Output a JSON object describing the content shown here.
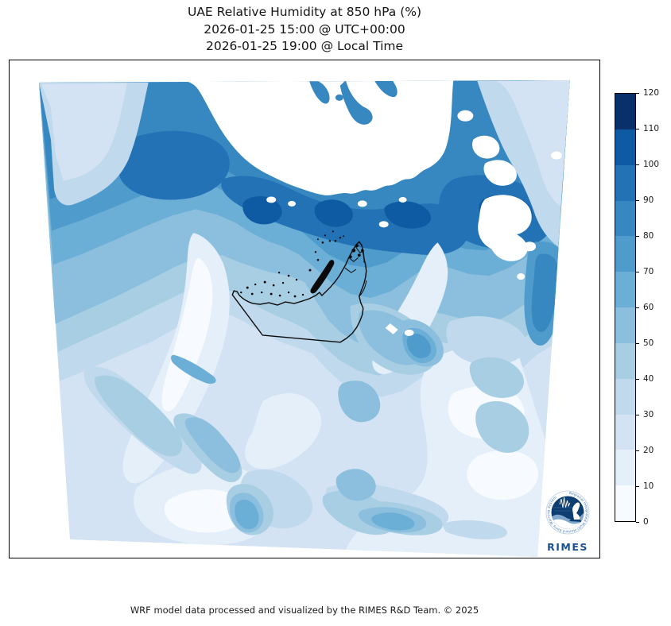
{
  "title": {
    "line1": "UAE Relative Humidity at 850 hPa (%)",
    "line2": "2026-01-25 15:00 @ UTC+00:00",
    "line3": "2026-01-25 19:00 @ Local Time"
  },
  "footer": {
    "credit": "WRF model data processed and visualized by the RIMES R&D Team. © 2025"
  },
  "logo": {
    "ring_text": "Regional Integrated Multi-Hazard Early Warning System",
    "name": "RIMES"
  },
  "chart_data": {
    "type": "heatmap",
    "title": "UAE Relative Humidity at 850 hPa (%)",
    "variable": "Relative Humidity",
    "pressure_level": "850 hPa",
    "units": "%",
    "region": "UAE",
    "valid_time_utc": "2026-01-25 15:00 @ UTC+00:00",
    "valid_time_local": "2026-01-25 19:00 @ Local Time",
    "overlay": "UAE national border outline with coastal island and terrain dots",
    "legend_position": "right",
    "colorbar": {
      "min": 0,
      "max": 120,
      "tick_step": 10,
      "ticks": [
        0,
        10,
        20,
        30,
        40,
        50,
        60,
        70,
        80,
        90,
        100,
        110,
        120
      ],
      "level_colors": [
        "#f7fbff",
        "#e5eff9",
        "#d3e3f3",
        "#c1d9ed",
        "#a8cee4",
        "#8bbfdd",
        "#6baed6",
        "#4f9bcb",
        "#3787c0",
        "#2272b5",
        "#0e5aa3",
        "#08306b"
      ],
      "mask_color": "#ffffff"
    },
    "visual_summary": {
      "north": "broad high-humidity band (70-110%) across upper third with large white masked areas near top-centre and scattered white holes top-right",
      "center": "pale low-humidity wedge (0-20%) sweeping south-west past western UAE",
      "south_east": "mostly 10-40% with isolated 50-80% patches south and east of the UAE border"
    }
  }
}
